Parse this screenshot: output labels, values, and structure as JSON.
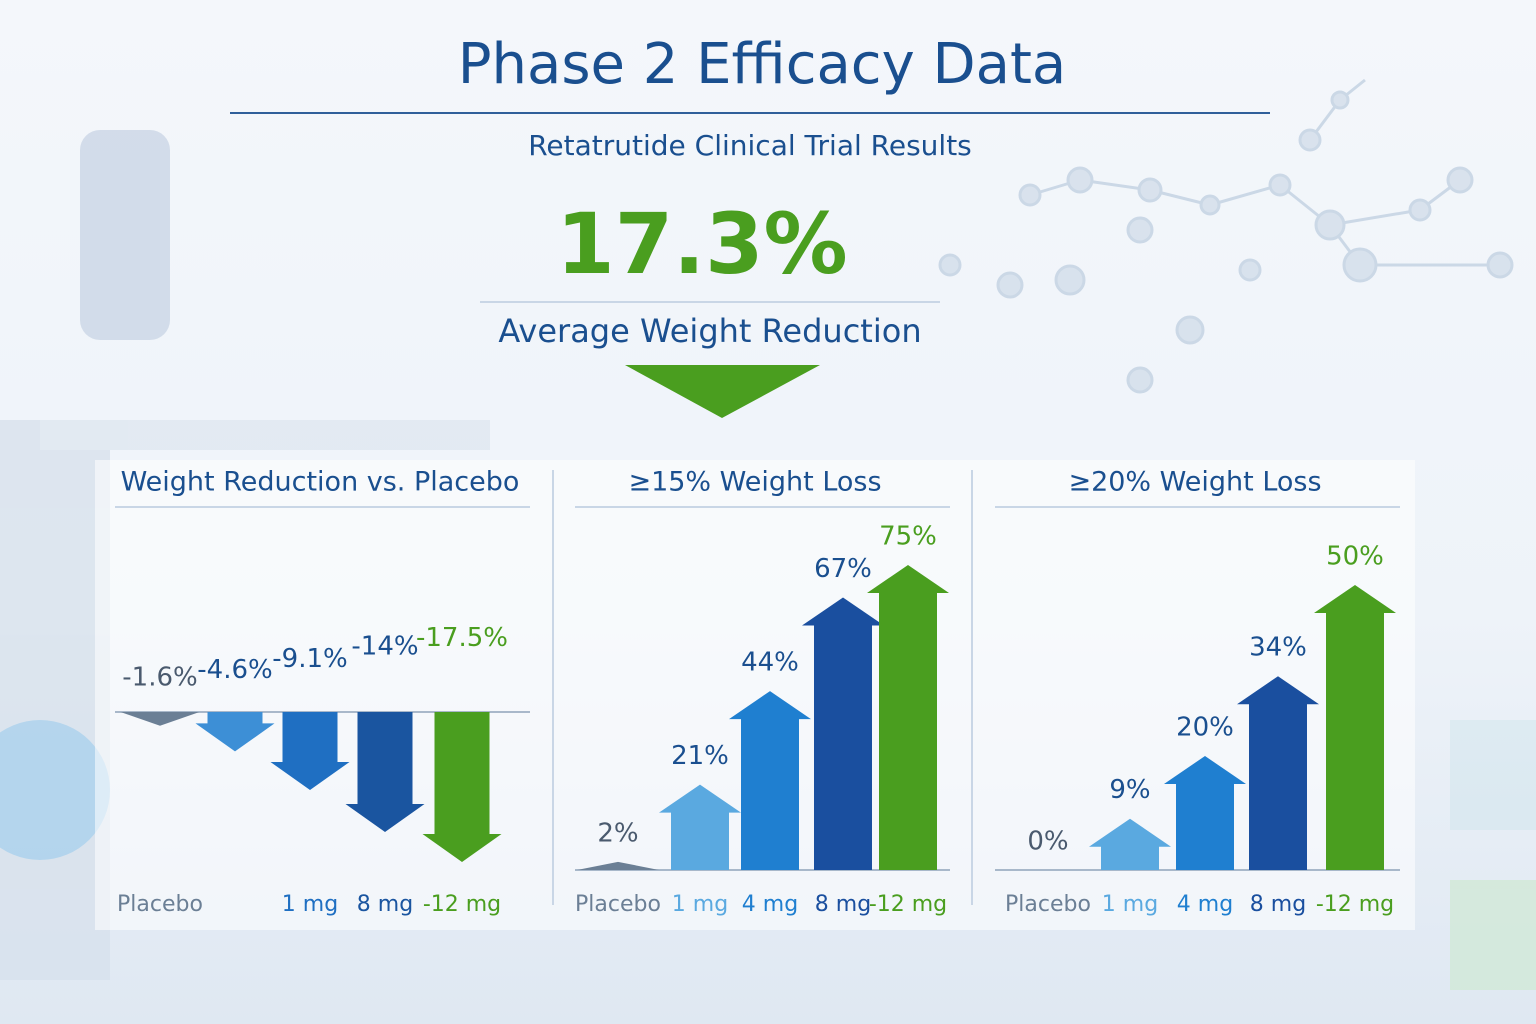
{
  "header": {
    "title": "Phase 2 Efficacy Data",
    "subtitle": "Retatrutide Clinical Trial Results",
    "highlight": "17.3%",
    "highlight_caption": "Average Weight Reduction"
  },
  "chart_data": [
    {
      "type": "bar",
      "title": "Weight Reduction vs. Placebo",
      "categories": [
        "Placebo",
        null,
        "1 mg",
        "8 mg",
        "-12 mg"
      ],
      "values": [
        -1.6,
        -4.6,
        -9.1,
        -14,
        -17.5
      ],
      "value_labels": [
        "-1.6%",
        "-4.6%",
        "-9.1%",
        "-14%",
        "-17.5%"
      ],
      "colors": [
        "#6b7f95",
        "#3d8fd6",
        "#1f6fc2",
        "#1a55a0",
        "#4a9e1f"
      ]
    },
    {
      "type": "bar",
      "title": "≥15% Weight Loss",
      "categories": [
        "Placebo",
        "1 mg",
        "4 mg",
        "8 mg",
        "-12 mg"
      ],
      "values": [
        2,
        21,
        44,
        67,
        75
      ],
      "value_labels": [
        "2%",
        "21%",
        "44%",
        "67%",
        "75%"
      ],
      "colors": [
        "#6b7f95",
        "#5aa9e0",
        "#1f7fd0",
        "#1a4f9f",
        "#4a9e1f"
      ]
    },
    {
      "type": "bar",
      "title": "≥20% Weight Loss",
      "categories": [
        "Placebo",
        "1 mg",
        "4 mg",
        "8 mg",
        "-12 mg"
      ],
      "values": [
        0,
        9,
        20,
        34,
        50
      ],
      "value_labels": [
        "0%",
        "9%",
        "20%",
        "34%",
        "50%"
      ],
      "colors": [
        "#6b7f95",
        "#5aa9e0",
        "#1f7fd0",
        "#1a4f9f",
        "#4a9e1f"
      ]
    }
  ]
}
